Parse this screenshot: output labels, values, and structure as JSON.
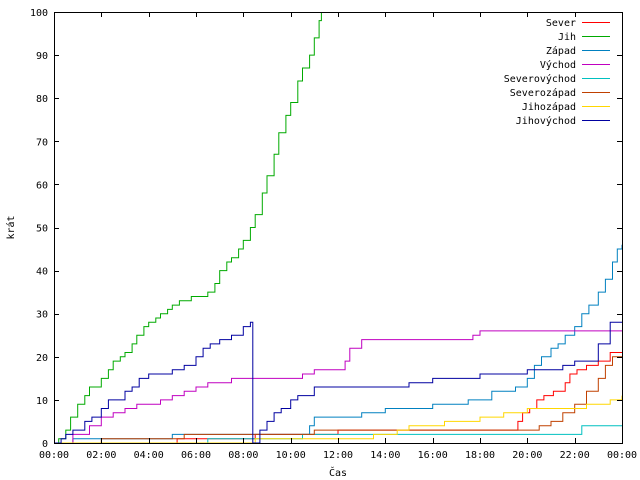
{
  "chart_data": {
    "type": "line",
    "title": "",
    "xlabel": "Čas",
    "ylabel": "krát",
    "xlim": [
      0,
      24
    ],
    "ylim": [
      0,
      100
    ],
    "grid": false,
    "legend_position": "top-right",
    "x_ticks": [
      {
        "value": 0,
        "label": "00:00"
      },
      {
        "value": 2,
        "label": "02:00"
      },
      {
        "value": 4,
        "label": "04:00"
      },
      {
        "value": 6,
        "label": "06:00"
      },
      {
        "value": 8,
        "label": "08:00"
      },
      {
        "value": 10,
        "label": "10:00"
      },
      {
        "value": 12,
        "label": "12:00"
      },
      {
        "value": 14,
        "label": "14:00"
      },
      {
        "value": 16,
        "label": "16:00"
      },
      {
        "value": 18,
        "label": "18:00"
      },
      {
        "value": 20,
        "label": "20:00"
      },
      {
        "value": 22,
        "label": "22:00"
      },
      {
        "value": 24,
        "label": "00:00"
      }
    ],
    "y_ticks": [
      {
        "value": 0,
        "label": "0"
      },
      {
        "value": 10,
        "label": "10"
      },
      {
        "value": 20,
        "label": "20"
      },
      {
        "value": 30,
        "label": "30"
      },
      {
        "value": 40,
        "label": "40"
      },
      {
        "value": 50,
        "label": "50"
      },
      {
        "value": 60,
        "label": "60"
      },
      {
        "value": 70,
        "label": "70"
      },
      {
        "value": 80,
        "label": "80"
      },
      {
        "value": 90,
        "label": "90"
      },
      {
        "value": 100,
        "label": "100"
      }
    ],
    "series": [
      {
        "name": "Sever",
        "color": "#ff0000",
        "points": [
          [
            0,
            0
          ],
          [
            5.2,
            0
          ],
          [
            5.2,
            1
          ],
          [
            8.5,
            1
          ],
          [
            8.5,
            2
          ],
          [
            12,
            2
          ],
          [
            12,
            3
          ],
          [
            19.5,
            3
          ],
          [
            19.6,
            5
          ],
          [
            19.8,
            7
          ],
          [
            20.1,
            8
          ],
          [
            20.4,
            10
          ],
          [
            20.7,
            11
          ],
          [
            21.1,
            12
          ],
          [
            21.6,
            14
          ],
          [
            21.8,
            16
          ],
          [
            22.1,
            17
          ],
          [
            22.5,
            18
          ],
          [
            23,
            19
          ],
          [
            23.5,
            21
          ],
          [
            24,
            21
          ]
        ]
      },
      {
        "name": "Jih",
        "color": "#00aa00",
        "points": [
          [
            0,
            0
          ],
          [
            0.2,
            1
          ],
          [
            0.5,
            3
          ],
          [
            0.7,
            6
          ],
          [
            1,
            9
          ],
          [
            1.3,
            11
          ],
          [
            1.5,
            13
          ],
          [
            1.8,
            13
          ],
          [
            2,
            15
          ],
          [
            2.3,
            17
          ],
          [
            2.5,
            19
          ],
          [
            2.8,
            20
          ],
          [
            3,
            21
          ],
          [
            3.3,
            23
          ],
          [
            3.5,
            25
          ],
          [
            3.8,
            27
          ],
          [
            4,
            28
          ],
          [
            4.3,
            29
          ],
          [
            4.5,
            30
          ],
          [
            4.8,
            31
          ],
          [
            5,
            32
          ],
          [
            5.3,
            33
          ],
          [
            5.8,
            34
          ],
          [
            6.3,
            34
          ],
          [
            6.5,
            35
          ],
          [
            6.8,
            37
          ],
          [
            7,
            40
          ],
          [
            7.3,
            42
          ],
          [
            7.5,
            43
          ],
          [
            7.8,
            45
          ],
          [
            8,
            47
          ],
          [
            8.3,
            50
          ],
          [
            8.5,
            53
          ],
          [
            8.8,
            58
          ],
          [
            9,
            62
          ],
          [
            9.3,
            67
          ],
          [
            9.5,
            72
          ],
          [
            9.8,
            76
          ],
          [
            10,
            79
          ],
          [
            10.3,
            84
          ],
          [
            10.5,
            87
          ],
          [
            10.8,
            90
          ],
          [
            11,
            94
          ],
          [
            11.2,
            98
          ],
          [
            11.3,
            100
          ]
        ]
      },
      {
        "name": "Západ",
        "color": "#0080c0",
        "points": [
          [
            0,
            0
          ],
          [
            0.8,
            0
          ],
          [
            0.8,
            1
          ],
          [
            5,
            1
          ],
          [
            5,
            2
          ],
          [
            10.5,
            2
          ],
          [
            10.8,
            4
          ],
          [
            11,
            6
          ],
          [
            12,
            6
          ],
          [
            13,
            7
          ],
          [
            14,
            8
          ],
          [
            16,
            9
          ],
          [
            17.5,
            10
          ],
          [
            18.5,
            12
          ],
          [
            19.5,
            13
          ],
          [
            20,
            15
          ],
          [
            20.3,
            18
          ],
          [
            20.6,
            20
          ],
          [
            21,
            22
          ],
          [
            21.3,
            23
          ],
          [
            21.6,
            25
          ],
          [
            22,
            27
          ],
          [
            22.3,
            30
          ],
          [
            22.6,
            32
          ],
          [
            23,
            35
          ],
          [
            23.3,
            38
          ],
          [
            23.6,
            42
          ],
          [
            23.8,
            45
          ],
          [
            24,
            46
          ]
        ]
      },
      {
        "name": "Východ",
        "color": "#c000c0",
        "points": [
          [
            0,
            0
          ],
          [
            0.8,
            2
          ],
          [
            1.5,
            4
          ],
          [
            2,
            6
          ],
          [
            2.5,
            7
          ],
          [
            3,
            8
          ],
          [
            3.5,
            9
          ],
          [
            4,
            9
          ],
          [
            4.5,
            10
          ],
          [
            5,
            11
          ],
          [
            5.5,
            12
          ],
          [
            6,
            13
          ],
          [
            6.5,
            14
          ],
          [
            7,
            14
          ],
          [
            7.5,
            15
          ],
          [
            8.5,
            15
          ],
          [
            9,
            15
          ],
          [
            10.5,
            16
          ],
          [
            11,
            17
          ],
          [
            12,
            17
          ],
          [
            12.3,
            19
          ],
          [
            12.5,
            22
          ],
          [
            13,
            24
          ],
          [
            16,
            24
          ],
          [
            17.5,
            24
          ],
          [
            17.7,
            25
          ],
          [
            18,
            26
          ],
          [
            24,
            26
          ]
        ]
      },
      {
        "name": "Severovýchod",
        "color": "#00c0c0",
        "points": [
          [
            0,
            0
          ],
          [
            6.5,
            0
          ],
          [
            6.5,
            1
          ],
          [
            10.5,
            1
          ],
          [
            10.5,
            2
          ],
          [
            22,
            2
          ],
          [
            22.3,
            4
          ],
          [
            24,
            4
          ]
        ]
      },
      {
        "name": "Severozápad",
        "color": "#c04000",
        "points": [
          [
            0,
            0
          ],
          [
            2,
            0
          ],
          [
            2,
            1
          ],
          [
            5.5,
            1
          ],
          [
            5.5,
            2
          ],
          [
            11,
            2
          ],
          [
            11,
            3
          ],
          [
            20,
            3
          ],
          [
            20.5,
            4
          ],
          [
            21,
            5
          ],
          [
            21.5,
            7
          ],
          [
            22,
            9
          ],
          [
            22.5,
            12
          ],
          [
            23,
            15
          ],
          [
            23.3,
            18
          ],
          [
            23.6,
            20
          ],
          [
            24,
            20
          ]
        ]
      },
      {
        "name": "Jihozápad",
        "color": "#ffd700",
        "points": [
          [
            0,
            0
          ],
          [
            8.5,
            0
          ],
          [
            8.5,
            1
          ],
          [
            13,
            1
          ],
          [
            13.5,
            2
          ],
          [
            14.5,
            3
          ],
          [
            15,
            4
          ],
          [
            16.5,
            5
          ],
          [
            17.5,
            5
          ],
          [
            18,
            6
          ],
          [
            19,
            7
          ],
          [
            20,
            8
          ],
          [
            22,
            8
          ],
          [
            22.5,
            9
          ],
          [
            23.5,
            10
          ],
          [
            24,
            11
          ]
        ]
      },
      {
        "name": "Jihovýchod",
        "color": "#0000a0",
        "points": [
          [
            0,
            0
          ],
          [
            0.3,
            1
          ],
          [
            0.5,
            2
          ],
          [
            0.8,
            3
          ],
          [
            1,
            3
          ],
          [
            1.3,
            5
          ],
          [
            1.6,
            6
          ],
          [
            2,
            8
          ],
          [
            2.3,
            10
          ],
          [
            2.6,
            10
          ],
          [
            3,
            12
          ],
          [
            3.3,
            13
          ],
          [
            3.6,
            15
          ],
          [
            4,
            16
          ],
          [
            4.5,
            16
          ],
          [
            5,
            17
          ],
          [
            5.5,
            18
          ],
          [
            6,
            20
          ],
          [
            6.3,
            22
          ],
          [
            6.6,
            23
          ],
          [
            7,
            24
          ],
          [
            7.5,
            25
          ],
          [
            8,
            27
          ],
          [
            8.3,
            28
          ],
          [
            8.4,
            28
          ],
          [
            8.4,
            0
          ],
          [
            8.7,
            3
          ],
          [
            9,
            5
          ],
          [
            9.3,
            7
          ],
          [
            9.6,
            8
          ],
          [
            10,
            10
          ],
          [
            10.3,
            11
          ],
          [
            11,
            13
          ],
          [
            13,
            13
          ],
          [
            14,
            13
          ],
          [
            15,
            14
          ],
          [
            16,
            15
          ],
          [
            18,
            16
          ],
          [
            20,
            17
          ],
          [
            21.5,
            18
          ],
          [
            22,
            19
          ],
          [
            23,
            23
          ],
          [
            23.5,
            28
          ],
          [
            24,
            28
          ]
        ]
      }
    ]
  }
}
